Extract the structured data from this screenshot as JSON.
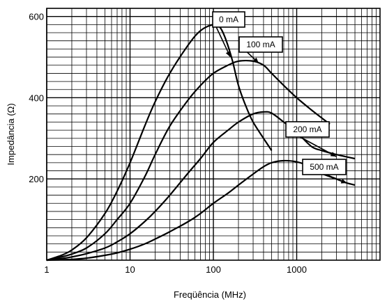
{
  "chart_data": {
    "type": "line",
    "xlabel": "Freqüência (MHz)",
    "ylabel": "Impedância (Ω)",
    "x_scale": "log",
    "xlim": [
      1,
      10000
    ],
    "ylim": [
      0,
      620
    ],
    "grid": true,
    "x_ticks": [
      {
        "value": 1,
        "label": "1"
      },
      {
        "value": 10,
        "label": "10"
      },
      {
        "value": 100,
        "label": "100"
      },
      {
        "value": 1000,
        "label": "1000"
      }
    ],
    "y_ticks": [
      {
        "value": 200,
        "label": "200"
      },
      {
        "value": 400,
        "label": "400"
      },
      {
        "value": 600,
        "label": "600"
      }
    ],
    "series": [
      {
        "name": "0 mA",
        "x": [
          1,
          1.5,
          2,
          3,
          5,
          7,
          10,
          15,
          20,
          30,
          50,
          70,
          100,
          120,
          140,
          170,
          200,
          250,
          300,
          400,
          500
        ],
        "y": [
          0,
          12,
          25,
          55,
          115,
          170,
          240,
          330,
          390,
          460,
          530,
          565,
          580,
          573,
          545,
          490,
          430,
          375,
          340,
          300,
          270
        ]
      },
      {
        "name": "100 mA",
        "x": [
          1,
          1.5,
          2,
          3,
          5,
          7,
          10,
          15,
          20,
          30,
          50,
          70,
          100,
          150,
          200,
          300,
          400,
          500,
          700,
          1000,
          1500,
          2000,
          2500
        ],
        "y": [
          0,
          8,
          15,
          30,
          65,
          100,
          140,
          205,
          260,
          330,
          395,
          430,
          460,
          480,
          490,
          490,
          480,
          460,
          430,
          400,
          370,
          350,
          335
        ]
      },
      {
        "name": "200 mA",
        "x": [
          1,
          1.5,
          2,
          3,
          5,
          7,
          10,
          15,
          20,
          30,
          50,
          70,
          100,
          150,
          200,
          300,
          400,
          500,
          700,
          1000,
          1500,
          2000,
          3000,
          5000
        ],
        "y": [
          0,
          4,
          8,
          16,
          30,
          45,
          65,
          95,
          120,
          160,
          215,
          250,
          290,
          320,
          340,
          360,
          365,
          362,
          340,
          315,
          280,
          270,
          260,
          250
        ]
      },
      {
        "name": "500 mA",
        "x": [
          1,
          2,
          3,
          5,
          7,
          10,
          15,
          20,
          30,
          50,
          70,
          100,
          150,
          200,
          300,
          400,
          500,
          700,
          1000,
          1500,
          2000,
          3000,
          4000,
          5000
        ],
        "y": [
          0,
          2,
          5,
          12,
          18,
          27,
          40,
          52,
          70,
          95,
          115,
          140,
          165,
          185,
          212,
          230,
          240,
          245,
          242,
          230,
          215,
          200,
          190,
          185
        ]
      }
    ],
    "annotations": [
      {
        "text": "0 mA",
        "target": [
          160,
          500
        ]
      },
      {
        "text": "100 mA",
        "target": [
          350,
          485
        ]
      },
      {
        "text": "200 mA",
        "target": [
          3000,
          255
        ]
      },
      {
        "text": "500 mA",
        "target": [
          4000,
          190
        ]
      }
    ]
  }
}
